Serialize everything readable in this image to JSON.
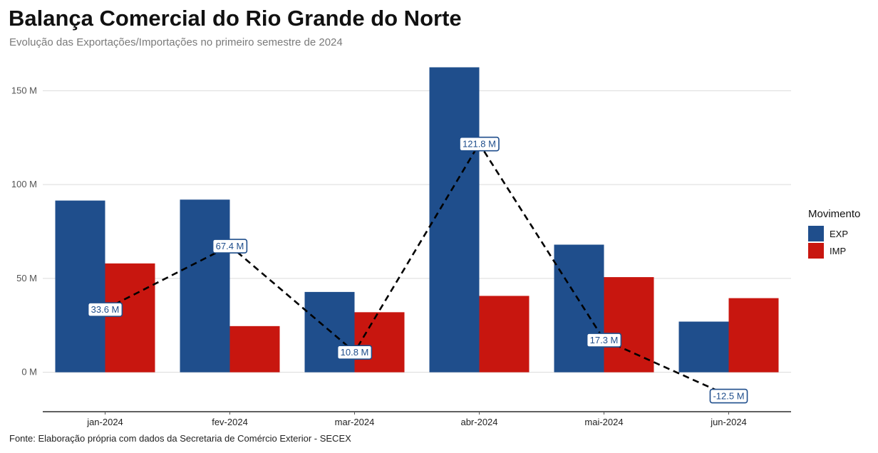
{
  "chart_data": {
    "type": "bar",
    "title": "Balança Comercial do Rio Grande do Norte",
    "subtitle": "Evolução das Exportações/Importações no primeiro semestre de 2024",
    "caption": "Fonte: Elaboração própria com dados da Secretaria de Comércio Exterior - SECEX",
    "categories": [
      "jan-2024",
      "fev-2024",
      "mar-2024",
      "abr-2024",
      "mai-2024",
      "jun-2024"
    ],
    "series": [
      {
        "name": "EXP",
        "color": "#1f4e8c",
        "values": [
          91.5,
          92.0,
          42.8,
          162.5,
          68.0,
          27.0
        ]
      },
      {
        "name": "IMP",
        "color": "#c8160f",
        "values": [
          58.0,
          24.6,
          32.0,
          40.7,
          50.7,
          39.5
        ]
      }
    ],
    "balance": {
      "style": "dashed-line",
      "color": "#000000",
      "values": [
        33.6,
        67.4,
        10.8,
        121.8,
        17.3,
        -12.5
      ],
      "labels": [
        "33.6 M",
        "67.4 M",
        "10.8 M",
        "121.8 M",
        "17.3 M",
        "-12.5 M"
      ]
    },
    "yticks": [
      0,
      50,
      100,
      150
    ],
    "ytick_labels": [
      "0 M",
      "50 M",
      "100 M",
      "150 M"
    ],
    "ylim": [
      -21,
      168
    ],
    "grid": true,
    "legend": {
      "title": "Movimento",
      "position": "right"
    }
  }
}
